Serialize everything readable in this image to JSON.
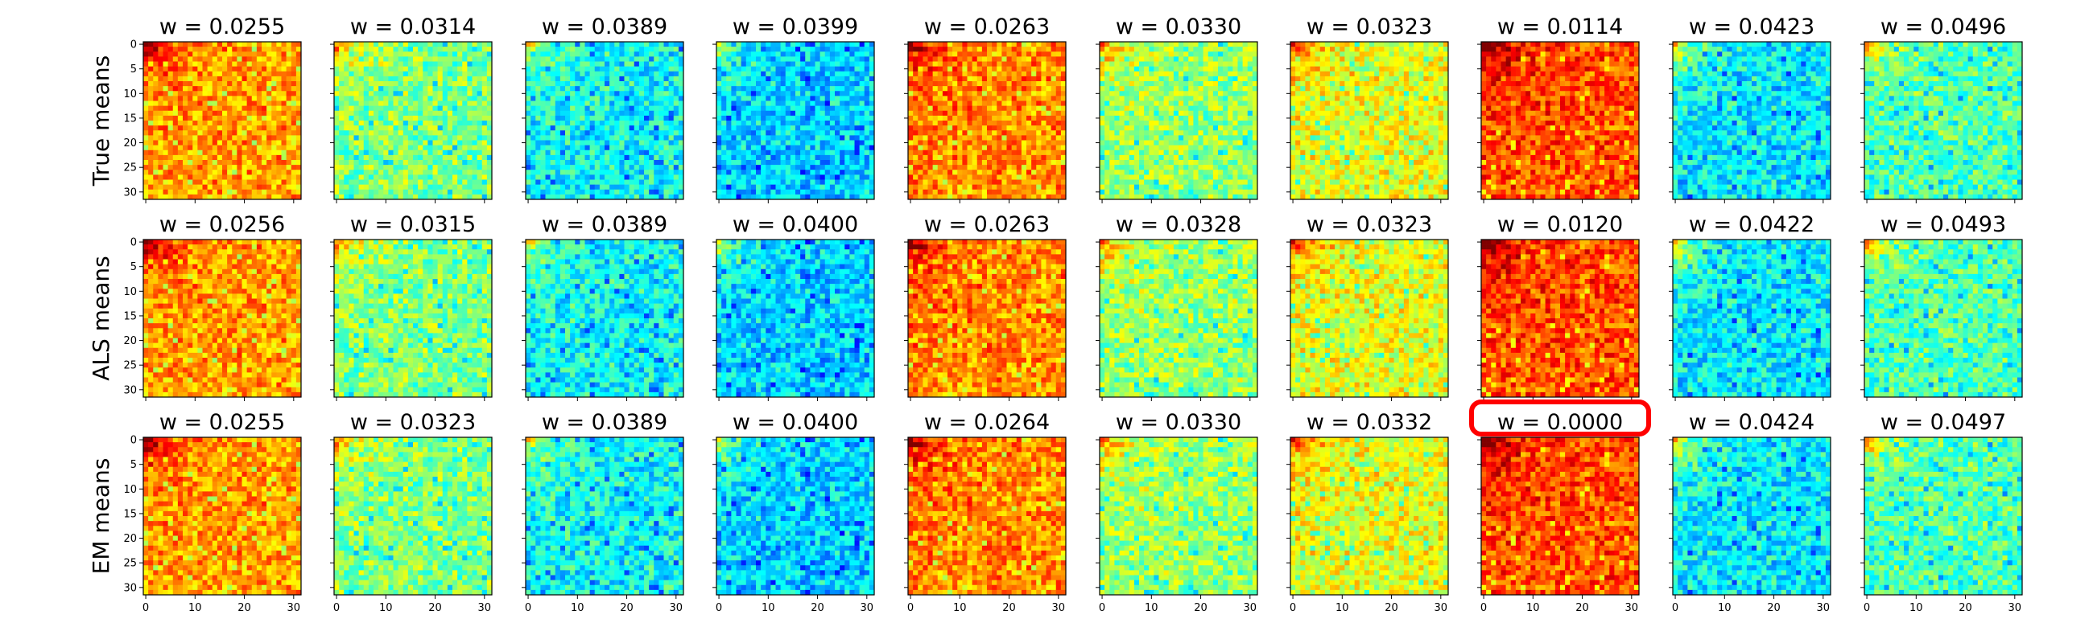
{
  "chart_data": {
    "type": "heatmap",
    "colormap": "jet",
    "value_range": [
      0,
      1
    ],
    "grid_size": 32,
    "row_labels": [
      "True means",
      "ALS means",
      "EM means"
    ],
    "title_prefix": "w = ",
    "weights": [
      [
        "0.0255",
        "0.0314",
        "0.0389",
        "0.0399",
        "0.0263",
        "0.0330",
        "0.0323",
        "0.0114",
        "0.0423",
        "0.0496"
      ],
      [
        "0.0256",
        "0.0315",
        "0.0389",
        "0.0400",
        "0.0263",
        "0.0328",
        "0.0323",
        "0.0120",
        "0.0422",
        "0.0493"
      ],
      [
        "0.0255",
        "0.0323",
        "0.0389",
        "0.0400",
        "0.0264",
        "0.0330",
        "0.0332",
        "0.0000",
        "0.0424",
        "0.0497"
      ]
    ],
    "y_ticks": [
      0,
      5,
      10,
      15,
      20,
      25,
      30
    ],
    "x_ticks": [
      0,
      10,
      20,
      30
    ],
    "approx_base_level_by_column": [
      0.72,
      0.5,
      0.38,
      0.33,
      0.74,
      0.52,
      0.6,
      0.8,
      0.36,
      0.45
    ],
    "highlight": {
      "row": 2,
      "col": 7,
      "color": "#ff0000"
    }
  }
}
